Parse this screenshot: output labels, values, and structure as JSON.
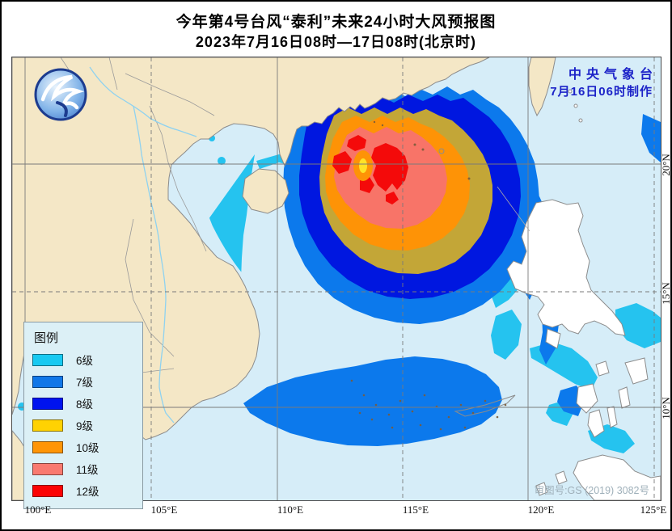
{
  "title": {
    "line1": "今年第4号台风“泰利”未来24小时大风预报图",
    "line2": "2023年7月16日08时—17日08时(北京时)"
  },
  "agency": {
    "line1": "中央气象台",
    "line2": "7月16日06时制作"
  },
  "watermark": "审图号:GS (2019) 3082号",
  "legend": {
    "title": "图例",
    "items": [
      {
        "label": "6级",
        "color": "#18C9F1"
      },
      {
        "label": "7级",
        "color": "#1177E8"
      },
      {
        "label": "8级",
        "color": "#0013EF"
      },
      {
        "label": "9级",
        "color": "#FFD202"
      },
      {
        "label": "10级",
        "color": "#FF9506"
      },
      {
        "label": "11级",
        "color": "#F97A70"
      },
      {
        "label": "12级",
        "color": "#FB0304"
      }
    ]
  },
  "axis": {
    "lon_ticks": [
      "100°E",
      "105°E",
      "110°E",
      "115°E",
      "120°E",
      "125°E"
    ],
    "lat_ticks": [
      "20°N",
      "15°N",
      "10°N"
    ]
  },
  "map_colors": {
    "sea": "#D6EDF8",
    "land": "#F4E7C6",
    "land_outline": "#8C8C8C",
    "philippines": "#FFFFFF",
    "level6": "#25C3EF",
    "level7": "#0C79EC",
    "level8": "#0017E0",
    "level9": "#C3A637",
    "level10": "#FE9306",
    "level11": "#F87468",
    "level12": "#F40A0A",
    "eye_yellow": "#FFE228",
    "river": "#8FD2F0",
    "grid": "#7A7A7A"
  }
}
